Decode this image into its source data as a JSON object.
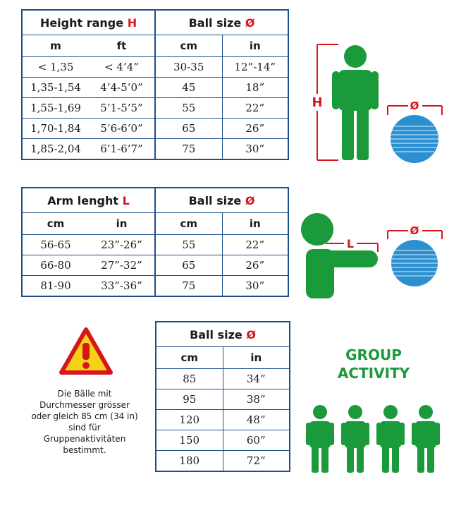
{
  "height_table": {
    "title": "Height range",
    "title_symbol": "H",
    "ball_title": "Ball size",
    "ball_symbol": "Ø",
    "sub_headers": [
      "m",
      "ft",
      "cm",
      "in"
    ],
    "rows": [
      [
        "< 1,35",
        "< 4’4”",
        "30-35",
        "12”-14”"
      ],
      [
        "1,35-1,54",
        "4’4-5’0”",
        "45",
        "18”"
      ],
      [
        "1,55-1,69",
        "5’1-5’5”",
        "55",
        "22”"
      ],
      [
        "1,70-1,84",
        "5’6-6’0”",
        "65",
        "26”"
      ],
      [
        "1,85-2,04",
        "6’1-6’7”",
        "75",
        "30”"
      ]
    ]
  },
  "arm_table": {
    "title": "Arm lenght",
    "title_symbol": "L",
    "ball_title": "Ball size",
    "ball_symbol": "Ø",
    "sub_headers": [
      "cm",
      "in",
      "cm",
      "in"
    ],
    "rows": [
      [
        "56-65",
        "23”-26”",
        "55",
        "22”"
      ],
      [
        "66-80",
        "27”-32”",
        "65",
        "26”"
      ],
      [
        "81-90",
        "33”-36”",
        "75",
        "30”"
      ]
    ]
  },
  "group_table": {
    "ball_title": "Ball size",
    "ball_symbol": "Ø",
    "sub_headers": [
      "cm",
      "in"
    ],
    "rows": [
      [
        "85",
        "34”"
      ],
      [
        "95",
        "38”"
      ],
      [
        "120",
        "48”"
      ],
      [
        "150",
        "60”"
      ],
      [
        "180",
        "72”"
      ]
    ]
  },
  "figures": {
    "height_label": "H",
    "arm_label": "L",
    "diameter_label": "Ø"
  },
  "group_activity": {
    "line1": "GROUP",
    "line2": "ACTIVITY"
  },
  "note": {
    "lines": [
      "Die Bälle mit",
      "Durchmesser grösser",
      "oder gleich 85 cm (34 in)",
      "sind für",
      "Gruppenaktivitäten",
      "bestimmt."
    ]
  },
  "colors": {
    "figure_green": "#1a9a3a",
    "accent_red": "#d6161a",
    "table_blue": "#1f4f8b",
    "ball_blue": "#2c8fd0",
    "warning_yellow": "#f7d117"
  },
  "icons": [
    "person-standing-icon",
    "person-arm-extended-icon",
    "exercise-ball-icon",
    "warning-icon",
    "group-people-icon"
  ]
}
